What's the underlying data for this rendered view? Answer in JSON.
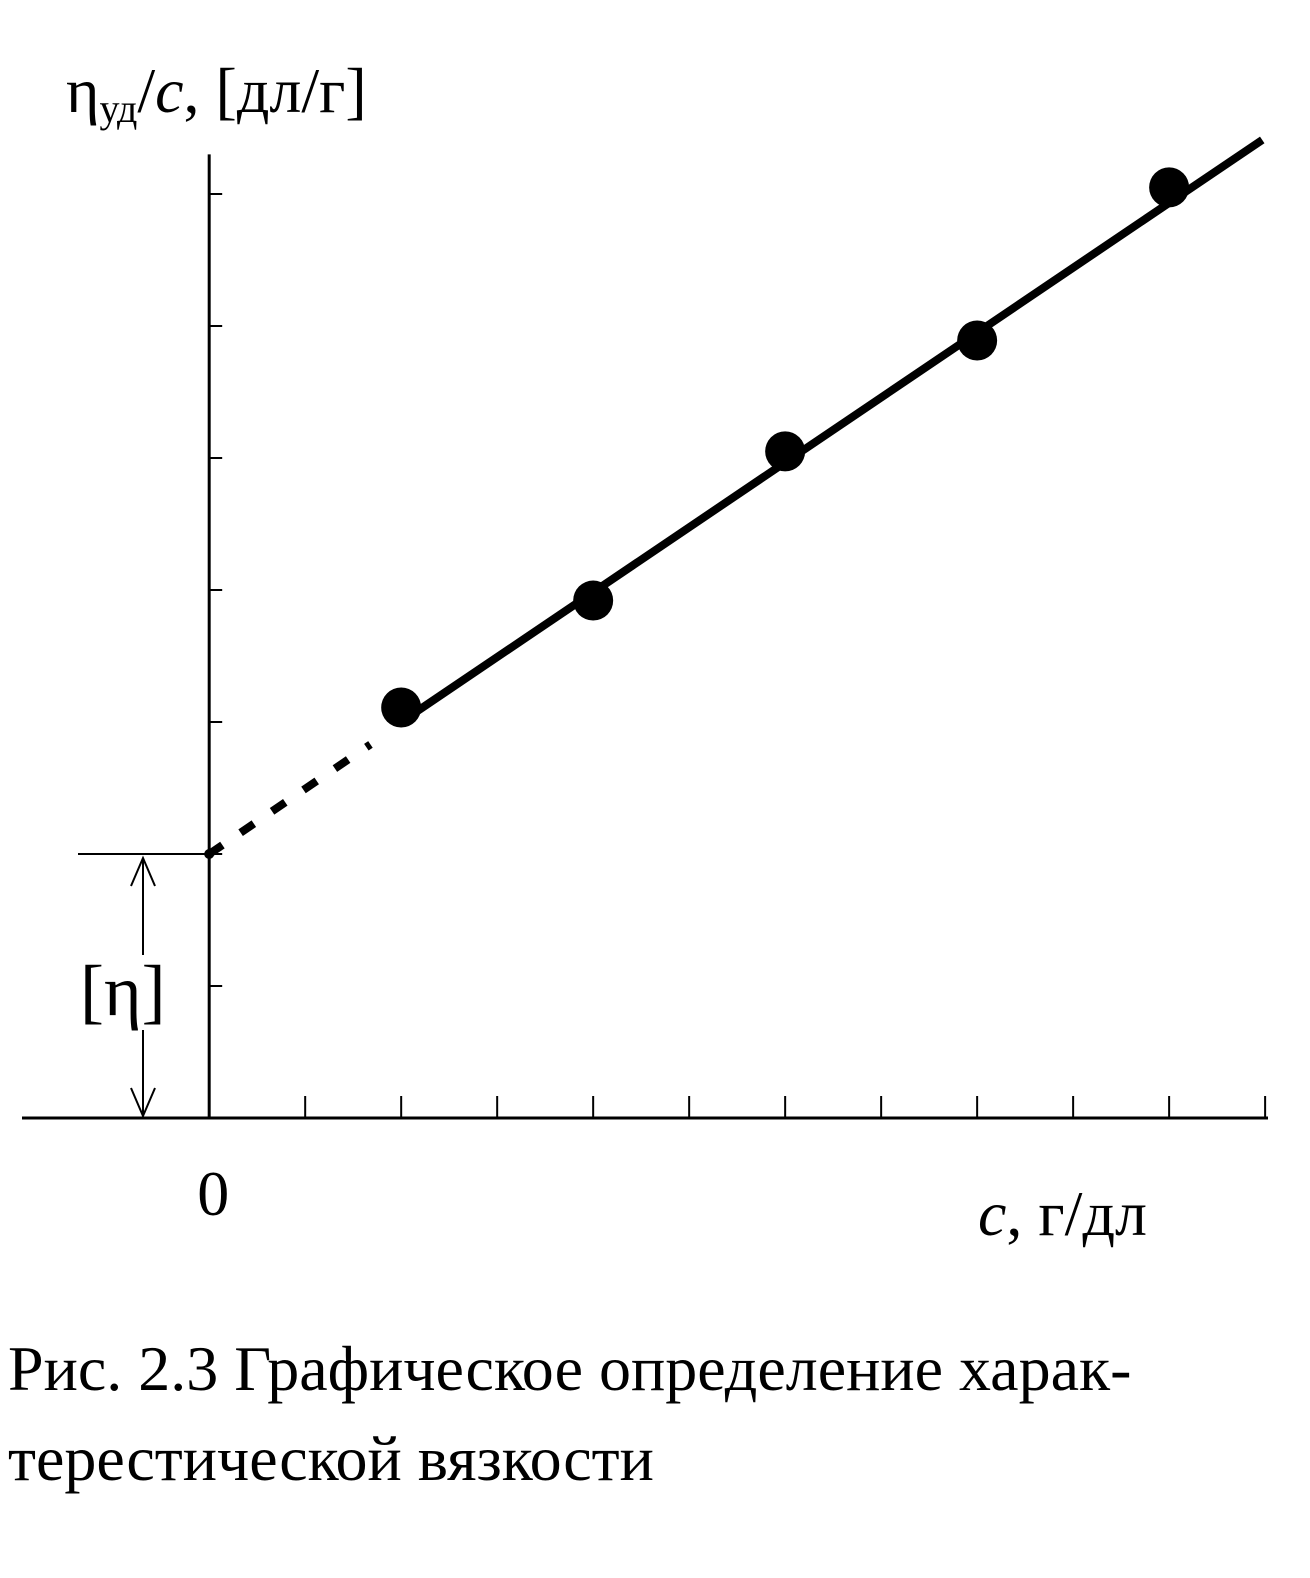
{
  "chart_data": {
    "type": "scatter",
    "y_label_parts": [
      "η",
      "уд",
      "/",
      "c",
      ", [дл/г]"
    ],
    "x_label_parts": [
      "c",
      ", г/дл"
    ],
    "annotation": "[η]",
    "caption": [
      "Рис. 2.3  Графическое определение харак-",
      "терестической вязкости"
    ],
    "x": [
      2,
      4,
      6,
      8,
      10
    ],
    "values": [
      3.11,
      3.92,
      5.05,
      5.89,
      7.05
    ],
    "color": "#000000",
    "fit": {
      "x": [
        2,
        10.97
      ],
      "y": [
        3.0,
        7.41
      ]
    },
    "extrapolation": {
      "x": [
        0,
        1.68
      ],
      "y": [
        2,
        2.83
      ]
    },
    "intercept": 2,
    "xlim": [
      -1.95,
      11.03
    ],
    "ylim": [
      0,
      7.3
    ],
    "xticks": [
      {
        "value": 0,
        "label": "0"
      },
      {
        "value": 1,
        "label": null
      },
      {
        "value": 2,
        "label": null
      },
      {
        "value": 3,
        "label": null
      },
      {
        "value": 4,
        "label": null
      },
      {
        "value": 5,
        "label": null
      },
      {
        "value": 6,
        "label": null
      },
      {
        "value": 7,
        "label": null
      },
      {
        "value": 8,
        "label": null
      },
      {
        "value": 9,
        "label": null
      },
      {
        "value": 10,
        "label": null
      },
      {
        "value": 11,
        "label": null
      }
    ],
    "yticks": [
      {
        "value": 1,
        "label": null
      },
      {
        "value": 2,
        "label": null
      },
      {
        "value": 3,
        "label": null
      },
      {
        "value": 4,
        "label": null
      },
      {
        "value": 5,
        "label": null
      },
      {
        "value": 6,
        "label": null
      },
      {
        "value": 7,
        "label": null
      }
    ],
    "grid": false
  }
}
